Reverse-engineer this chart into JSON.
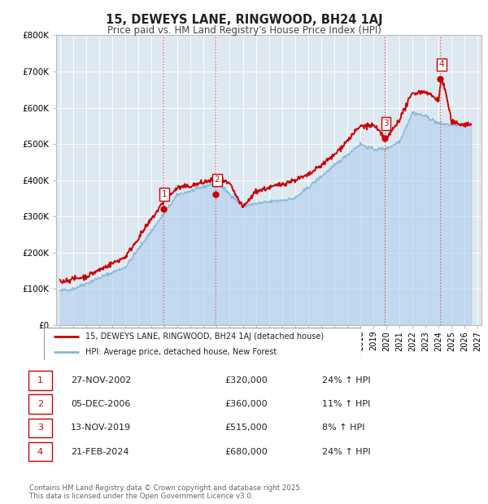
{
  "title": "15, DEWEYS LANE, RINGWOOD, BH24 1AJ",
  "subtitle": "Price paid vs. HM Land Registry's House Price Index (HPI)",
  "background_color": "#ffffff",
  "plot_bg_color": "#dde8f0",
  "grid_color": "#ffffff",
  "x_start_year": 1995,
  "x_end_year": 2027,
  "y_min": 0,
  "y_max": 800000,
  "y_ticks": [
    0,
    100000,
    200000,
    300000,
    400000,
    500000,
    600000,
    700000,
    800000
  ],
  "y_tick_labels": [
    "£0",
    "£100K",
    "£200K",
    "£300K",
    "£400K",
    "£500K",
    "£600K",
    "£700K",
    "£800K"
  ],
  "sale_points": [
    {
      "year": 2002.9,
      "price": 320000,
      "label": "1"
    },
    {
      "year": 2006.92,
      "price": 360000,
      "label": "2"
    },
    {
      "year": 2019.87,
      "price": 515000,
      "label": "3"
    },
    {
      "year": 2024.12,
      "price": 680000,
      "label": "4"
    }
  ],
  "vline_color": "#dd4444",
  "sale_marker_color": "#cc0000",
  "hpi_line_color": "#88b8d8",
  "hpi_fill_color": "#aaccee",
  "price_line_color": "#cc0000",
  "legend_line_color_1": "#cc0000",
  "legend_line_color_2": "#88b8d8",
  "legend_entries": [
    "15, DEWEYS LANE, RINGWOOD, BH24 1AJ (detached house)",
    "HPI: Average price, detached house, New Forest"
  ],
  "table_rows": [
    {
      "num": "1",
      "date": "27-NOV-2002",
      "price": "£320,000",
      "hpi": "24% ↑ HPI"
    },
    {
      "num": "2",
      "date": "05-DEC-2006",
      "price": "£360,000",
      "hpi": "11% ↑ HPI"
    },
    {
      "num": "3",
      "date": "13-NOV-2019",
      "price": "£515,000",
      "hpi": "8% ↑ HPI"
    },
    {
      "num": "4",
      "date": "21-FEB-2024",
      "price": "£680,000",
      "hpi": "24% ↑ HPI"
    }
  ],
  "footer": "Contains HM Land Registry data © Crown copyright and database right 2025.\nThis data is licensed under the Open Government Licence v3.0."
}
